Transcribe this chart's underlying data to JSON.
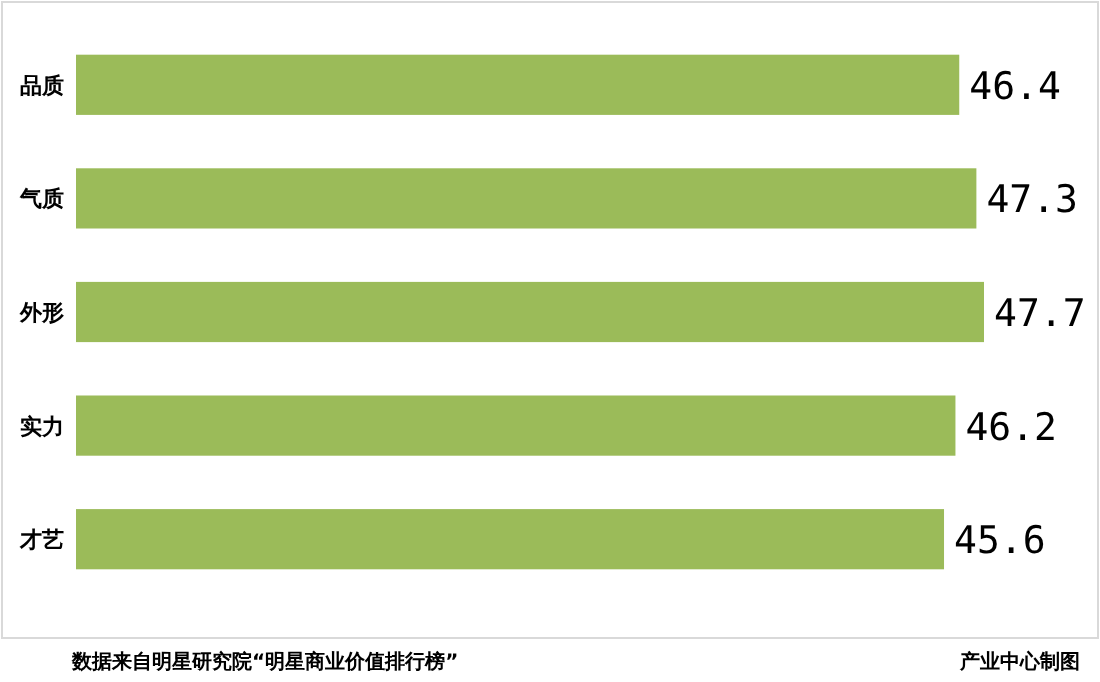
{
  "chart_data": {
    "type": "bar",
    "orientation": "horizontal",
    "categories": [
      "品质",
      "气质",
      "外形",
      "实力",
      "才艺"
    ],
    "values": [
      46.4,
      47.3,
      47.7,
      46.2,
      45.6
    ],
    "color": "#9bbb59",
    "data_labels": true,
    "annotations": [
      "数据来自明星研究院“明星商业价值排行榜”",
      "产业中心制图"
    ]
  }
}
